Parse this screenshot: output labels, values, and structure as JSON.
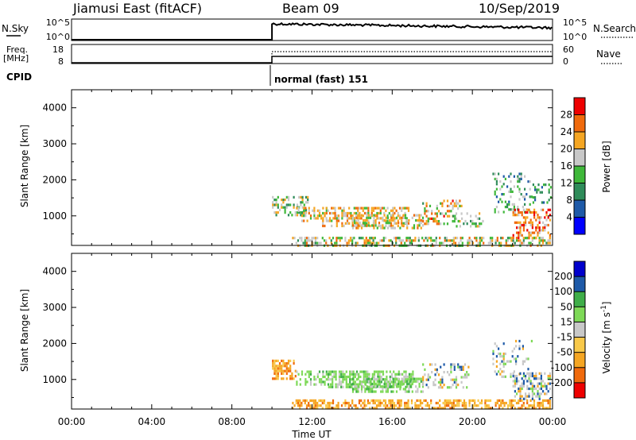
{
  "header": {
    "station": "Jiamusi East (fitACF)",
    "beam": "Beam 09",
    "date": "10/Sep/2019"
  },
  "strip_labels": {
    "nsky": "N.Sky",
    "nsky_ticks": [
      "10^5",
      "10^0"
    ],
    "nsearch": "N.Search",
    "nsearch_ticks": [
      "10^5",
      "10^0"
    ],
    "freq_line1": "Freq.",
    "freq_line2": "[MHz]",
    "freq_ticks": [
      "18",
      "8"
    ],
    "nave": "Nave",
    "nave_ticks": [
      "60",
      "0"
    ],
    "cpid": "CPID",
    "cpid_mode": "normal (fast) 151"
  },
  "chart_data": [
    {
      "type": "heatmap",
      "quantity": "power",
      "ylabel": "Slant Range [km]",
      "ylim": [
        180,
        4500
      ],
      "y_ticks": [
        "1000",
        "2000",
        "3000",
        "4000"
      ],
      "xlim_hours": [
        0,
        24
      ],
      "colorbar_label": "Power [dB]",
      "colorbar_ticks": [
        "4",
        "8",
        "12",
        "16",
        "20",
        "24",
        "28"
      ],
      "colorbar_colors": [
        "#0000ff",
        "#1e5aa8",
        "#2f8c5a",
        "#3fb83a",
        "#c8c8c8",
        "#f5a623",
        "#f06a0c",
        "#ee0000"
      ],
      "regions": [
        {
          "t0": 10.0,
          "t1": 11.8,
          "r0": 1000,
          "r1": 1550,
          "p": 0.45,
          "v": [
            0.3,
            0.7
          ]
        },
        {
          "t0": 11.2,
          "t1": 12.8,
          "r0": 850,
          "r1": 1250,
          "p": 0.35,
          "v": [
            0.4,
            0.8
          ]
        },
        {
          "t0": 12.5,
          "t1": 16.8,
          "r0": 750,
          "r1": 1250,
          "p": 0.5,
          "v": [
            0.45,
            0.85
          ]
        },
        {
          "t0": 14.0,
          "t1": 17.5,
          "r0": 650,
          "r1": 1050,
          "p": 0.4,
          "v": [
            0.4,
            0.8
          ]
        },
        {
          "t0": 17.5,
          "t1": 19.5,
          "r0": 750,
          "r1": 1450,
          "p": 0.3,
          "v": [
            0.35,
            0.9
          ]
        },
        {
          "t0": 19.0,
          "t1": 20.5,
          "r0": 700,
          "r1": 1100,
          "p": 0.25,
          "v": [
            0.3,
            0.7
          ]
        },
        {
          "t0": 21.0,
          "t1": 23.0,
          "r0": 1100,
          "r1": 2200,
          "p": 0.22,
          "v": [
            0.2,
            0.6
          ]
        },
        {
          "t0": 22.0,
          "t1": 23.9,
          "r0": 400,
          "r1": 1200,
          "p": 0.45,
          "v": [
            0.5,
            0.95
          ]
        },
        {
          "t0": 11.0,
          "t1": 23.9,
          "r0": 200,
          "r1": 420,
          "p": 0.5,
          "v": [
            0.3,
            0.8
          ]
        },
        {
          "t0": 23.0,
          "t1": 23.9,
          "r0": 1400,
          "r1": 1900,
          "p": 0.2,
          "v": [
            0.2,
            0.5
          ]
        }
      ]
    },
    {
      "type": "heatmap",
      "quantity": "velocity",
      "ylabel": "Slant Range [km]",
      "ylim": [
        180,
        4500
      ],
      "y_ticks": [
        "1000",
        "2000",
        "3000",
        "4000"
      ],
      "xlim_hours": [
        0,
        24
      ],
      "x_ticks": [
        "00:00",
        "04:00",
        "08:00",
        "12:00",
        "16:00",
        "20:00",
        "00:00"
      ],
      "xlabel": "Time UT",
      "colorbar_label": "Velocity [m s^-1]",
      "colorbar_ticks": [
        "-200",
        "-100",
        "-50",
        "-15",
        "15",
        "50",
        "100",
        "200"
      ],
      "colorbar_colors": [
        "#ee0000",
        "#f06a0c",
        "#f5a623",
        "#f8c94a",
        "#c8c8c8",
        "#7ed957",
        "#3fae49",
        "#1e5aa8",
        "#0000cc"
      ],
      "regions": [
        {
          "t0": 10.0,
          "t1": 11.2,
          "r0": 1050,
          "r1": 1550,
          "p": 0.6,
          "v": "orange"
        },
        {
          "t0": 11.2,
          "t1": 12.8,
          "r0": 850,
          "r1": 1250,
          "p": 0.4,
          "v": "green"
        },
        {
          "t0": 12.8,
          "t1": 17.0,
          "r0": 800,
          "r1": 1250,
          "p": 0.65,
          "v": "green"
        },
        {
          "t0": 14.0,
          "t1": 17.5,
          "r0": 650,
          "r1": 1050,
          "p": 0.5,
          "v": "green"
        },
        {
          "t0": 17.5,
          "t1": 19.8,
          "r0": 750,
          "r1": 1450,
          "p": 0.3,
          "v": "gray"
        },
        {
          "t0": 21.0,
          "t1": 23.0,
          "r0": 1100,
          "r1": 2100,
          "p": 0.2,
          "v": "gray"
        },
        {
          "t0": 22.0,
          "t1": 23.9,
          "r0": 450,
          "r1": 1200,
          "p": 0.45,
          "v": "gray"
        },
        {
          "t0": 11.0,
          "t1": 23.9,
          "r0": 200,
          "r1": 450,
          "p": 0.55,
          "v": "orange"
        }
      ]
    }
  ]
}
